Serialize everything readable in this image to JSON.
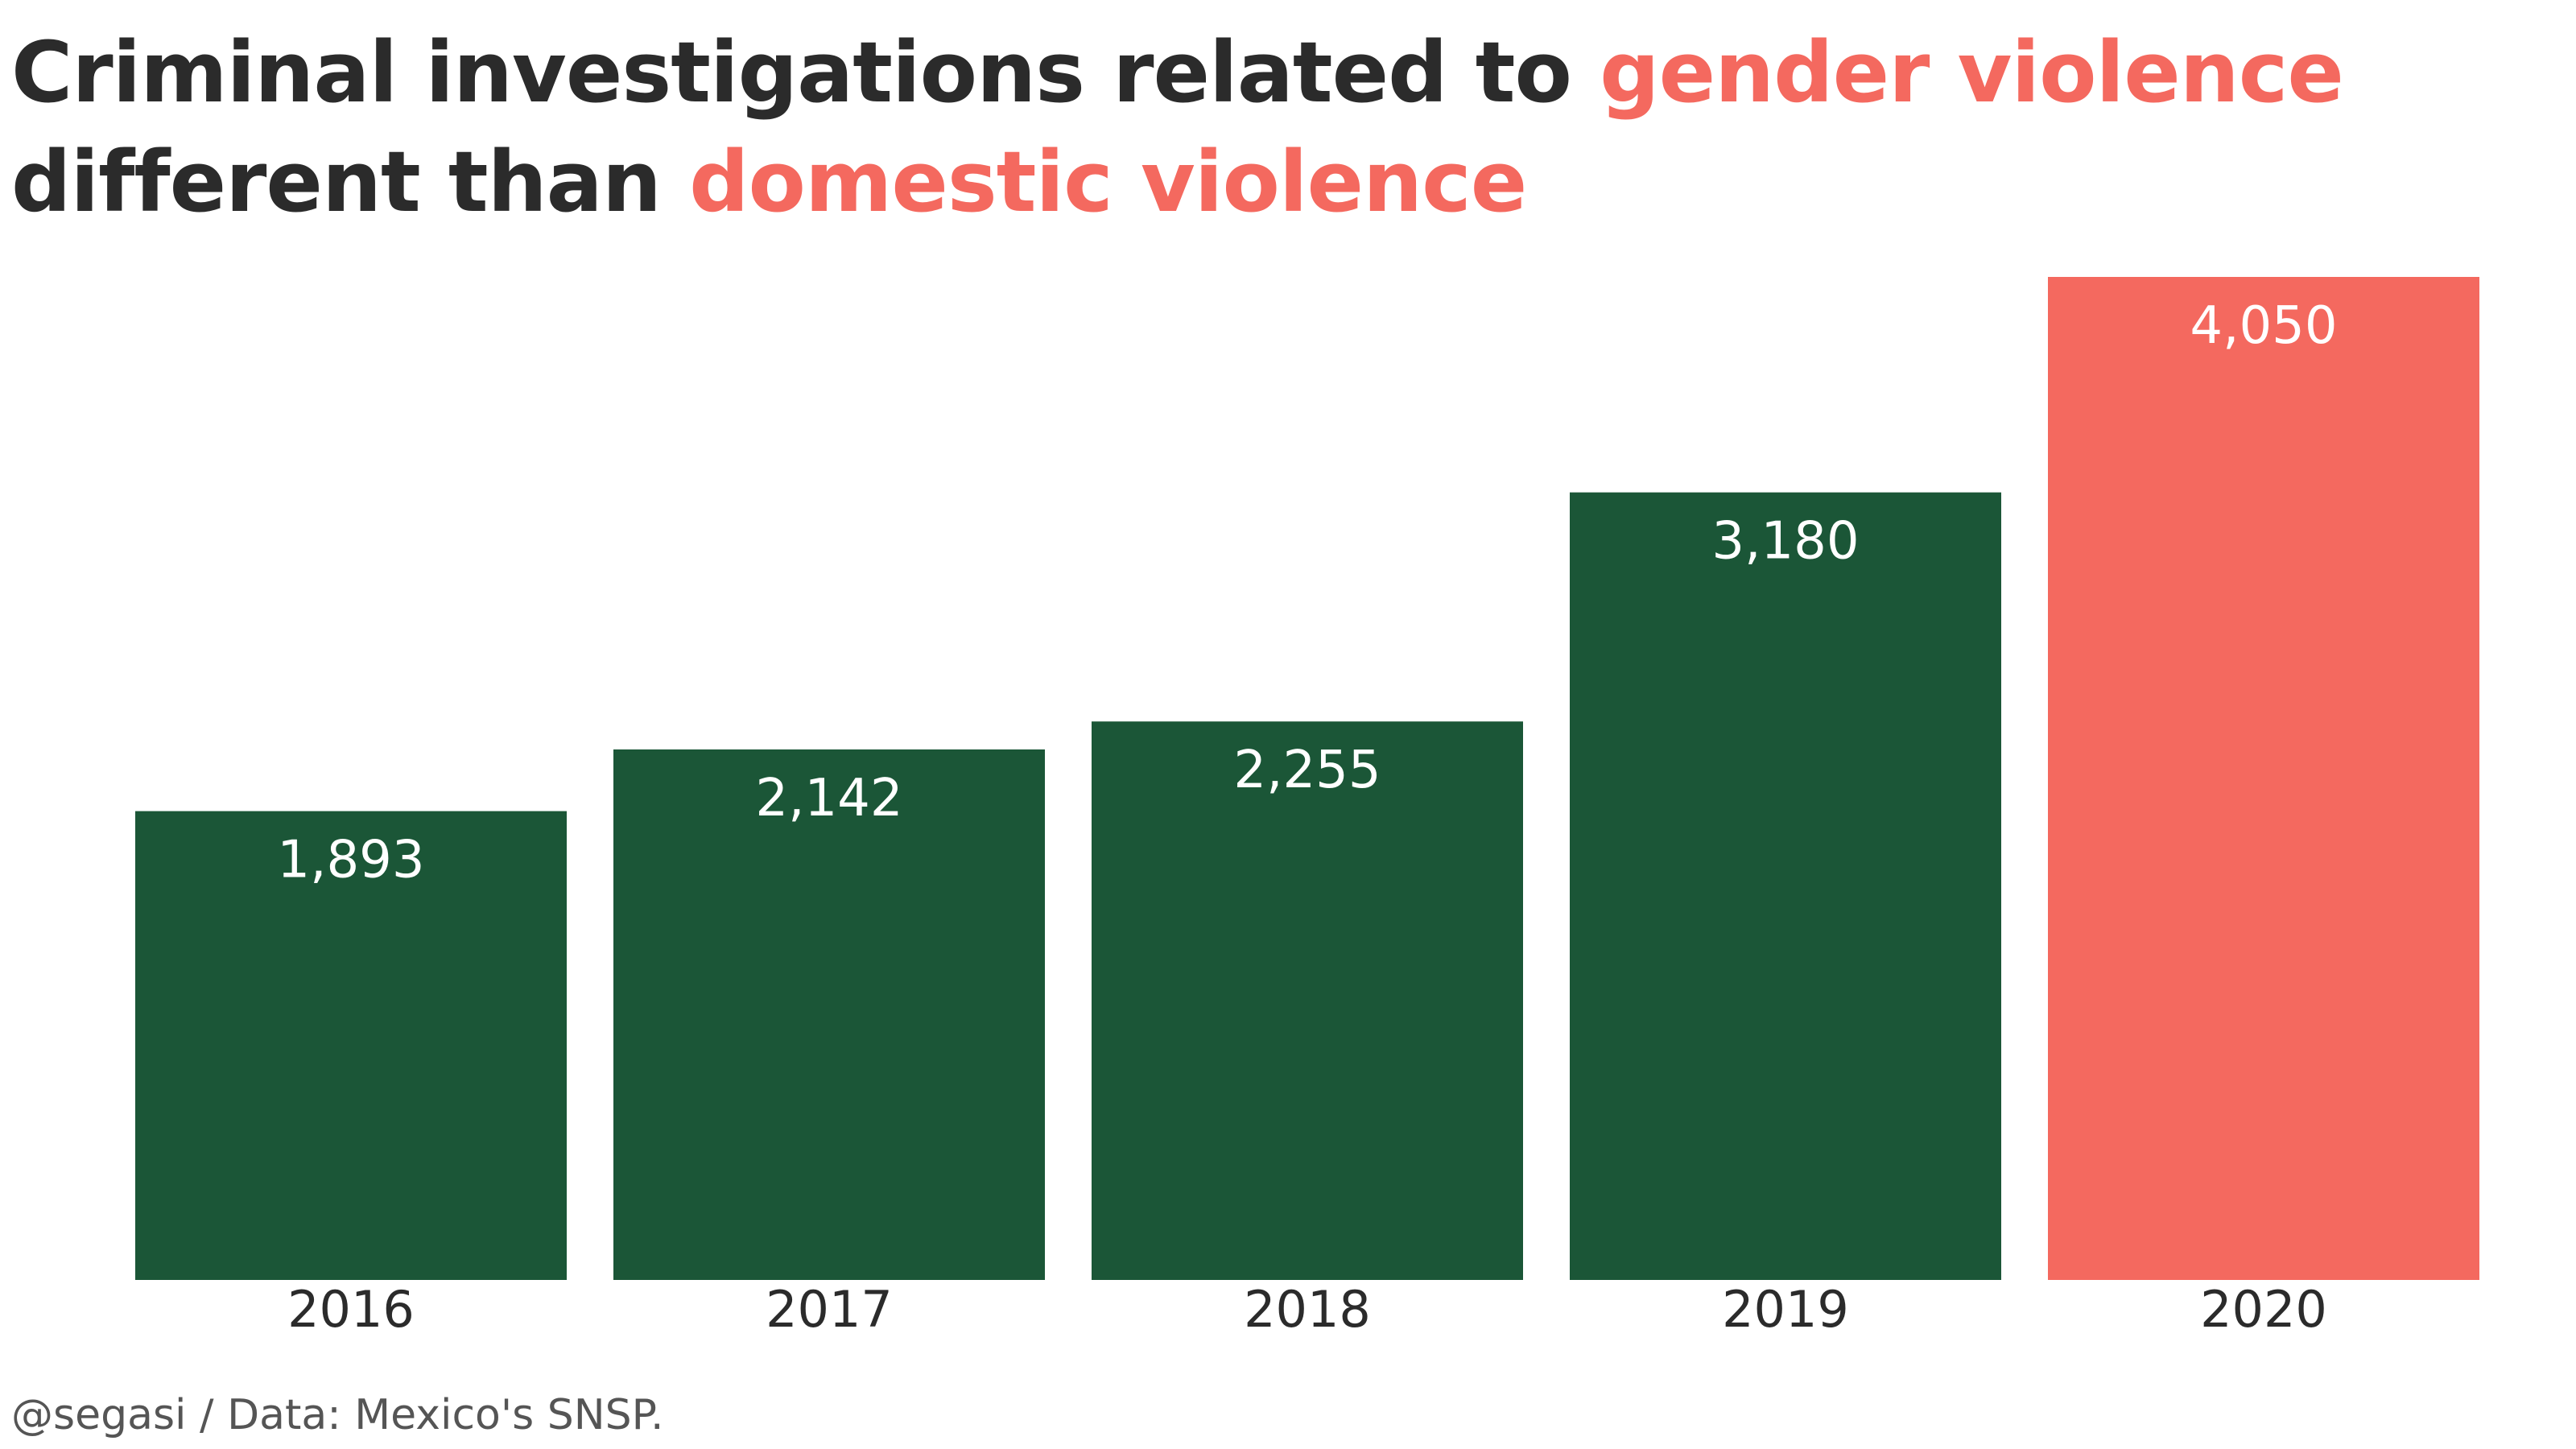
{
  "title": {
    "part1": "Criminal investigations related to ",
    "highlight1": "gender violence",
    "part2": "different than ",
    "highlight2": "domestic violence"
  },
  "caption": "@segasi / Data: Mexico's SNSP.",
  "colors": {
    "title": "#2b2b2b",
    "highlight": "#f4695f",
    "bar_default": "#1b5637",
    "bar_highlight": "#f4695f",
    "value_label": "#ffffff",
    "tick_label": "#2b2b2b",
    "caption": "#555555"
  },
  "chart_data": {
    "type": "bar",
    "title": "Criminal investigations related to gender violence different than domestic violence",
    "categories": [
      "2016",
      "2017",
      "2018",
      "2019",
      "2020"
    ],
    "values": [
      1893,
      2142,
      2255,
      3180,
      4050
    ],
    "value_labels": [
      "1,893",
      "2,142",
      "2,255",
      "3,180",
      "4,050"
    ],
    "highlight_category": "2020",
    "xlabel": "",
    "ylabel": "",
    "ylim": [
      0,
      4050
    ],
    "grid": false,
    "legend": "none"
  }
}
